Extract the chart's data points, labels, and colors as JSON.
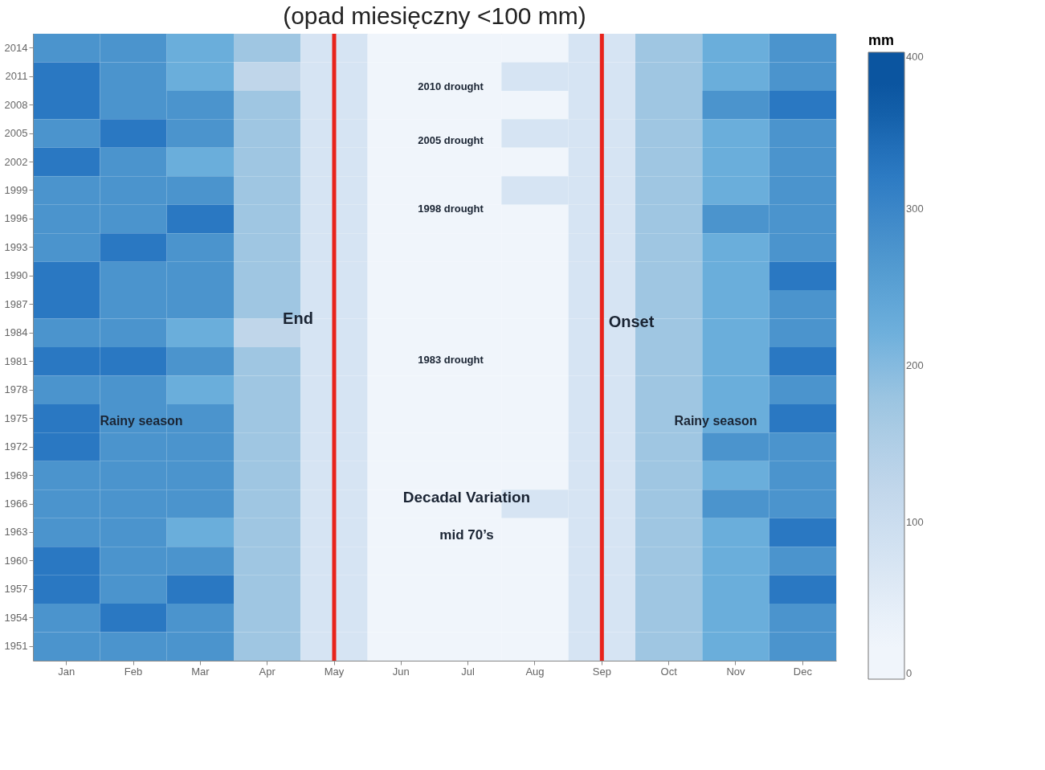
{
  "chart_data": {
    "type": "heatmap",
    "title": "(opad miesięczny <100 mm)",
    "clabel": "mm",
    "categories": [
      "Jan",
      "Feb",
      "Mar",
      "Apr",
      "May",
      "Jun",
      "Jul",
      "Aug",
      "Sep",
      "Oct",
      "Nov",
      "Dec"
    ],
    "y_categories": [
      "2014",
      "2011",
      "2008",
      "2005",
      "2002",
      "1999",
      "1996",
      "1993",
      "1990",
      "1987",
      "1984",
      "1981",
      "1978",
      "1975",
      "1972",
      "1969",
      "1966",
      "1963",
      "1960",
      "1957",
      "1954",
      "1951"
    ],
    "cells": [
      [
        275,
        275,
        225,
        175,
        75,
        25,
        25,
        25,
        75,
        175,
        225,
        275
      ],
      [
        325,
        275,
        225,
        125,
        75,
        25,
        25,
        75,
        75,
        175,
        225,
        275
      ],
      [
        325,
        275,
        275,
        175,
        75,
        25,
        25,
        25,
        75,
        175,
        275,
        325
      ],
      [
        275,
        325,
        275,
        175,
        75,
        25,
        25,
        75,
        75,
        175,
        225,
        275
      ],
      [
        325,
        275,
        225,
        175,
        75,
        25,
        25,
        25,
        75,
        175,
        225,
        275
      ],
      [
        275,
        275,
        275,
        175,
        75,
        25,
        25,
        75,
        75,
        175,
        225,
        275
      ],
      [
        275,
        275,
        325,
        175,
        75,
        25,
        25,
        25,
        75,
        175,
        275,
        275
      ],
      [
        275,
        325,
        275,
        175,
        75,
        25,
        25,
        25,
        75,
        175,
        225,
        275
      ],
      [
        325,
        275,
        275,
        175,
        75,
        25,
        25,
        25,
        75,
        175,
        225,
        325
      ],
      [
        325,
        275,
        275,
        175,
        75,
        25,
        25,
        25,
        75,
        175,
        225,
        275
      ],
      [
        275,
        275,
        225,
        125,
        75,
        25,
        25,
        25,
        75,
        175,
        225,
        275
      ],
      [
        325,
        325,
        275,
        175,
        75,
        25,
        25,
        25,
        75,
        175,
        225,
        325
      ],
      [
        275,
        275,
        225,
        175,
        75,
        25,
        25,
        25,
        75,
        175,
        225,
        275
      ],
      [
        325,
        275,
        275,
        175,
        75,
        25,
        25,
        25,
        75,
        175,
        225,
        325
      ],
      [
        325,
        275,
        275,
        175,
        75,
        25,
        25,
        25,
        75,
        175,
        275,
        275
      ],
      [
        275,
        275,
        275,
        175,
        75,
        25,
        25,
        25,
        75,
        175,
        225,
        275
      ],
      [
        275,
        275,
        275,
        175,
        75,
        25,
        25,
        75,
        75,
        175,
        275,
        275
      ],
      [
        275,
        275,
        225,
        175,
        75,
        25,
        25,
        25,
        75,
        175,
        225,
        325
      ],
      [
        325,
        275,
        275,
        175,
        75,
        25,
        25,
        25,
        75,
        175,
        225,
        275
      ],
      [
        325,
        275,
        325,
        175,
        75,
        25,
        25,
        25,
        75,
        175,
        225,
        325
      ],
      [
        275,
        325,
        275,
        175,
        75,
        25,
        25,
        25,
        75,
        175,
        225,
        275
      ],
      [
        275,
        275,
        275,
        175,
        75,
        25,
        25,
        25,
        75,
        175,
        225,
        275
      ]
    ],
    "colors": [
      "#f0f5fb",
      "#d6e4f3",
      "#c0d6ea",
      "#9fc6e2",
      "#6aaedb",
      "#4b94cd",
      "#2a78c2",
      "#0b55a0"
    ],
    "clim": [
      0,
      400
    ],
    "cticks": [
      0,
      100,
      200,
      300,
      400
    ],
    "ref_lines": [
      {
        "axis": "x",
        "value": "May",
        "color": "#e8231b"
      },
      {
        "axis": "x",
        "value": "Sep",
        "color": "#e8231b"
      }
    ],
    "annotations": [
      "2010 drought",
      "2005 drought",
      "1998 drought",
      "1983 drought",
      "End",
      "Onset",
      "Rainy season",
      "Rainy season",
      "Decadal Variation",
      "mid 70’s"
    ]
  }
}
